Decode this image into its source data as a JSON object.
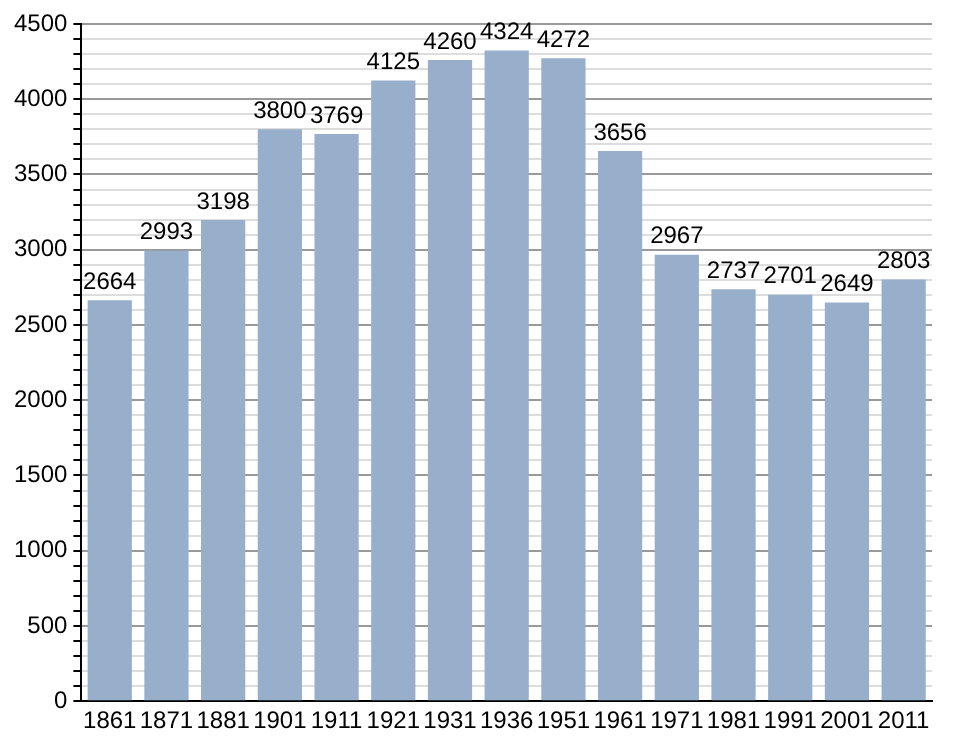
{
  "chart_data": {
    "type": "bar",
    "categories": [
      "1861",
      "1871",
      "1881",
      "1901",
      "1911",
      "1921",
      "1931",
      "1936",
      "1951",
      "1961",
      "1971",
      "1981",
      "1991",
      "2001",
      "2011"
    ],
    "values": [
      2664,
      2993,
      3198,
      3800,
      3769,
      4125,
      4260,
      4324,
      4272,
      3656,
      2967,
      2737,
      2701,
      2649,
      2803
    ],
    "color": "#97afcb",
    "data_labels": true,
    "ylim": [
      0,
      4500
    ],
    "yticks": [
      0,
      {
        "value": 100,
        "label": null
      },
      {
        "value": 200,
        "label": null
      },
      {
        "value": 300,
        "label": null
      },
      {
        "value": 400,
        "label": null
      },
      500,
      {
        "value": 600,
        "label": null
      },
      {
        "value": 700,
        "label": null
      },
      {
        "value": 800,
        "label": null
      },
      {
        "value": 900,
        "label": null
      },
      1000,
      {
        "value": 1100,
        "label": null
      },
      {
        "value": 1200,
        "label": null
      },
      {
        "value": 1300,
        "label": null
      },
      {
        "value": 1400,
        "label": null
      },
      1500,
      {
        "value": 1600,
        "label": null
      },
      {
        "value": 1700,
        "label": null
      },
      {
        "value": 1800,
        "label": null
      },
      {
        "value": 1900,
        "label": null
      },
      2000,
      {
        "value": 2100,
        "label": null
      },
      {
        "value": 2200,
        "label": null
      },
      {
        "value": 2300,
        "label": null
      },
      {
        "value": 2400,
        "label": null
      },
      2500,
      {
        "value": 2600,
        "label": null
      },
      {
        "value": 2700,
        "label": null
      },
      {
        "value": 2800,
        "label": null
      },
      {
        "value": 2900,
        "label": null
      },
      3000,
      {
        "value": 3100,
        "label": null
      },
      {
        "value": 3200,
        "label": null
      },
      {
        "value": 3300,
        "label": null
      },
      {
        "value": 3400,
        "label": null
      },
      3500,
      {
        "value": 3600,
        "label": null
      },
      {
        "value": 3700,
        "label": null
      },
      {
        "value": 3800,
        "label": null
      },
      {
        "value": 3900,
        "label": null
      },
      4000,
      {
        "value": 4100,
        "label": null
      },
      {
        "value": 4200,
        "label": null
      },
      {
        "value": 4300,
        "label": null
      },
      {
        "value": 4400,
        "label": null
      },
      4500
    ],
    "grid": "y"
  }
}
